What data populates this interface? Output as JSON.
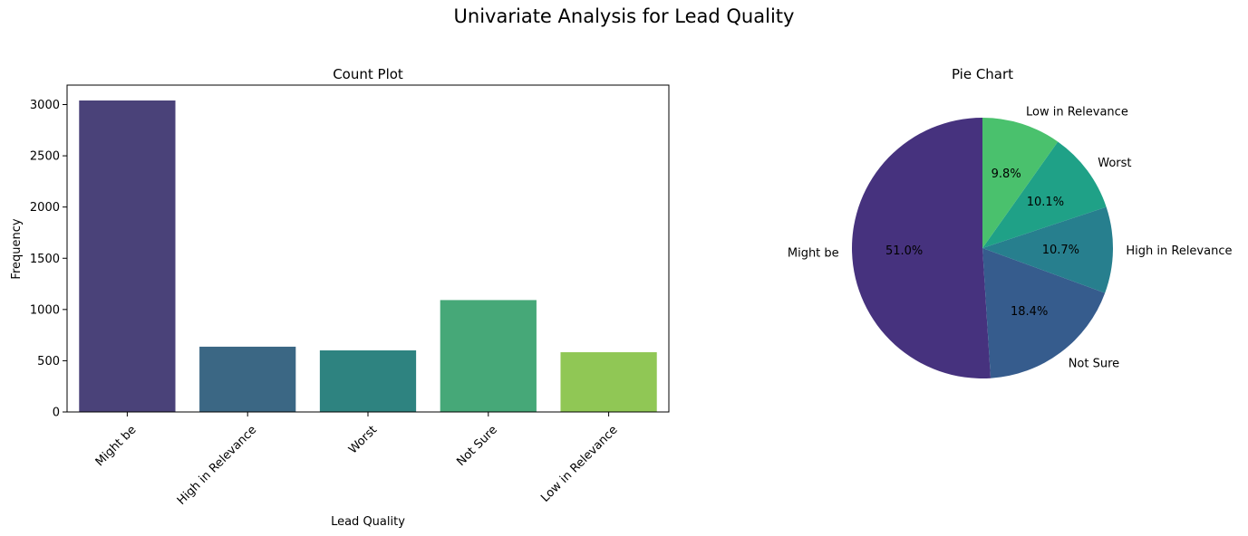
{
  "figure": {
    "suptitle": "Univariate Analysis for Lead Quality"
  },
  "chart_data": [
    {
      "type": "bar",
      "title": "Count Plot",
      "xlabel": "Lead Quality",
      "ylabel": "Frequency",
      "categories": [
        "Might be",
        "High in Relevance",
        "Worst",
        "Not Sure",
        "Low in Relevance"
      ],
      "values": [
        3040,
        637,
        601,
        1092,
        583
      ],
      "colors": [
        "#4a4279",
        "#3b6784",
        "#2e8380",
        "#46a878",
        "#90c755"
      ],
      "ylim": [
        0,
        3190
      ],
      "yticks": [
        0,
        500,
        1000,
        1500,
        2000,
        2500,
        3000
      ],
      "grid": false
    },
    {
      "type": "pie",
      "title": "Pie Chart",
      "labels": [
        "Might be",
        "Not Sure",
        "High in Relevance",
        "Worst",
        "Low in Relevance"
      ],
      "values": [
        51.0,
        18.4,
        10.7,
        10.1,
        9.8
      ],
      "pct_labels": [
        "51.0%",
        "18.4%",
        "10.7%",
        "10.1%",
        "9.8%"
      ],
      "colors": [
        "#46327e",
        "#365c8d",
        "#277f8e",
        "#1fa187",
        "#4ac16d"
      ],
      "start_angle_deg": 90,
      "direction": "counterclockwise"
    }
  ]
}
